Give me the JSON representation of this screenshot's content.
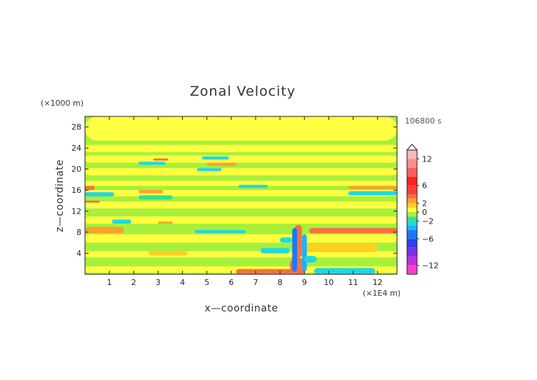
{
  "chart_data": {
    "type": "heatmap",
    "title": "Zonal Velocity",
    "xlabel": "x—coordinate",
    "ylabel": "z—coordinate",
    "x_unit": "(×1E4 m)",
    "y_unit": "(×1000 m)",
    "time_label": "106800 s",
    "xlim": [
      0,
      12.8
    ],
    "ylim": [
      0,
      30
    ],
    "x_ticks": [
      1,
      2,
      3,
      4,
      5,
      6,
      7,
      8,
      9,
      10,
      11,
      12
    ],
    "x_tick_labels": [
      "1",
      "2",
      "3",
      "4",
      "5",
      "6",
      "7",
      "8",
      "9",
      "10",
      "11",
      "12"
    ],
    "y_ticks": [
      4,
      8,
      12,
      16,
      20,
      24,
      28
    ],
    "y_tick_labels": [
      "4",
      "8",
      "12",
      "16",
      "20",
      "24",
      "28"
    ],
    "colorbar": {
      "range": [
        -14,
        14
      ],
      "tick_values": [
        12,
        6,
        2,
        0,
        -2,
        -6,
        -12
      ],
      "tick_labels": [
        "12",
        "6",
        "2",
        "0",
        "−2",
        "−6",
        "−12"
      ],
      "bands": [
        {
          "from": -14,
          "to": -12,
          "color": "#ff3fd0"
        },
        {
          "from": -12,
          "to": -10,
          "color": "#c030e0"
        },
        {
          "from": -10,
          "to": -8,
          "color": "#8030e8"
        },
        {
          "from": -8,
          "to": -6,
          "color": "#3040f0"
        },
        {
          "from": -6,
          "to": -4,
          "color": "#1c78f8"
        },
        {
          "from": -4,
          "to": -3,
          "color": "#20b0f8"
        },
        {
          "from": -3,
          "to": -2,
          "color": "#20d8e0"
        },
        {
          "from": -2,
          "to": -1,
          "color": "#30e090"
        },
        {
          "from": -1,
          "to": 0,
          "color": "#a6f03c"
        },
        {
          "from": 0,
          "to": 1,
          "color": "#ffff40"
        },
        {
          "from": 1,
          "to": 2,
          "color": "#ffd020"
        },
        {
          "from": 2,
          "to": 3,
          "color": "#ffa030"
        },
        {
          "from": 3,
          "to": 4,
          "color": "#f87040"
        },
        {
          "from": 4,
          "to": 6,
          "color": "#ff4030"
        },
        {
          "from": 6,
          "to": 8,
          "color": "#ff2020"
        },
        {
          "from": 8,
          "to": 10,
          "color": "#ff6060"
        },
        {
          "from": 10,
          "to": 12,
          "color": "#ff8c8c"
        },
        {
          "from": 12,
          "to": 14,
          "color": "#ffb8b8"
        }
      ]
    },
    "background_value": -0.5,
    "regions": [
      {
        "x": [
          0,
          12.8
        ],
        "z": [
          0.3,
          1.5
        ],
        "value": 0.5
      },
      {
        "x": [
          0,
          12.8
        ],
        "z": [
          3.2,
          4.4
        ],
        "value": 0.5
      },
      {
        "x": [
          0,
          12.8
        ],
        "z": [
          6.0,
          7.6
        ],
        "value": 0.5
      },
      {
        "x": [
          0,
          12.8
        ],
        "z": [
          9.6,
          11.0
        ],
        "value": 0.5
      },
      {
        "x": [
          0,
          12.8
        ],
        "z": [
          12.5,
          13.8
        ],
        "value": 0.5
      },
      {
        "x": [
          0,
          12.8
        ],
        "z": [
          16.8,
          17.8
        ],
        "value": 0.5
      },
      {
        "x": [
          0,
          12.8
        ],
        "z": [
          18.8,
          20.2
        ],
        "value": 0.5
      },
      {
        "x": [
          0,
          12.8
        ],
        "z": [
          21.2,
          22.6
        ],
        "value": 0.5
      },
      {
        "x": [
          0,
          12.8
        ],
        "z": [
          23.2,
          24.6
        ],
        "value": 0.5
      },
      {
        "x": [
          0,
          12.8
        ],
        "z": [
          25.4,
          30.0
        ],
        "value": 0.5
      },
      {
        "x": [
          0,
          12.8
        ],
        "z": [
          14.8,
          16.0
        ],
        "value": 0.5
      },
      {
        "x": [
          0,
          1.6
        ],
        "z": [
          7.8,
          9.0
        ],
        "value": 2.5
      },
      {
        "x": [
          2.6,
          4.2
        ],
        "z": [
          3.6,
          4.4
        ],
        "value": 1.5
      },
      {
        "x": [
          9.2,
          12.8
        ],
        "z": [
          7.8,
          8.8
        ],
        "value": 3.5
      },
      {
        "x": [
          9.0,
          12.0
        ],
        "z": [
          4.2,
          5.8
        ],
        "value": 1.5
      },
      {
        "x": [
          6.2,
          9.0
        ],
        "z": [
          0.0,
          1.0
        ],
        "value": 3.5
      },
      {
        "x": [
          8.4,
          9.0
        ],
        "z": [
          0.2,
          3.2
        ],
        "value": 3.5
      },
      {
        "x": [
          8.6,
          8.9
        ],
        "z": [
          3.2,
          9.4
        ],
        "value": 3.5
      },
      {
        "x": [
          8.5,
          8.7
        ],
        "z": [
          0.5,
          8.8
        ],
        "value": -5
      },
      {
        "x": [
          8.9,
          9.1
        ],
        "z": [
          0.6,
          7.6
        ],
        "value": -3.5
      },
      {
        "x": [
          7.2,
          8.4
        ],
        "z": [
          4.0,
          5.0
        ],
        "value": -2.5
      },
      {
        "x": [
          8.0,
          8.5
        ],
        "z": [
          6.0,
          7.0
        ],
        "value": -2.5
      },
      {
        "x": [
          9.0,
          9.5
        ],
        "z": [
          2.2,
          3.5
        ],
        "value": -2.5
      },
      {
        "x": [
          9.4,
          11.9
        ],
        "z": [
          0.0,
          1.2
        ],
        "value": -2.5
      },
      {
        "x": [
          1.1,
          1.9
        ],
        "z": [
          9.6,
          10.4
        ],
        "value": -2.5
      },
      {
        "x": [
          4.5,
          6.6
        ],
        "z": [
          7.8,
          8.4
        ],
        "value": -2.5
      },
      {
        "x": [
          0,
          1.2
        ],
        "z": [
          14.8,
          15.6
        ],
        "value": -2.5
      },
      {
        "x": [
          2.2,
          3.6
        ],
        "z": [
          14.2,
          15.0
        ],
        "value": -1.5
      },
      {
        "x": [
          6.3,
          7.5
        ],
        "z": [
          16.4,
          17.0
        ],
        "value": -2.5
      },
      {
        "x": [
          10.8,
          12.8
        ],
        "z": [
          15.0,
          15.8
        ],
        "value": -2.5
      },
      {
        "x": [
          2.2,
          3.3
        ],
        "z": [
          20.8,
          21.4
        ],
        "value": -2.5
      },
      {
        "x": [
          4.8,
          5.9
        ],
        "z": [
          21.8,
          22.4
        ],
        "value": -2.5
      },
      {
        "x": [
          4.6,
          5.6
        ],
        "z": [
          19.6,
          20.2
        ],
        "value": -2.5
      },
      {
        "x": [
          0,
          0.4
        ],
        "z": [
          16.0,
          16.8
        ],
        "value": 3.5
      },
      {
        "x": [
          2.2,
          3.2
        ],
        "z": [
          15.4,
          16.0
        ],
        "value": 2.5
      },
      {
        "x": [
          5.0,
          6.2
        ],
        "z": [
          20.6,
          21.2
        ],
        "value": 2.5
      },
      {
        "x": [
          2.8,
          3.4
        ],
        "z": [
          21.6,
          22.0
        ],
        "value": 3.5
      },
      {
        "x": [
          0,
          0.6
        ],
        "z": [
          13.6,
          14.0
        ],
        "value": 3.5
      },
      {
        "x": [
          10.8,
          12.8
        ],
        "z": [
          16.2,
          16.8
        ],
        "value": 2.5
      },
      {
        "x": [
          3.0,
          3.6
        ],
        "z": [
          9.6,
          10.0
        ],
        "value": 2.5
      }
    ]
  }
}
